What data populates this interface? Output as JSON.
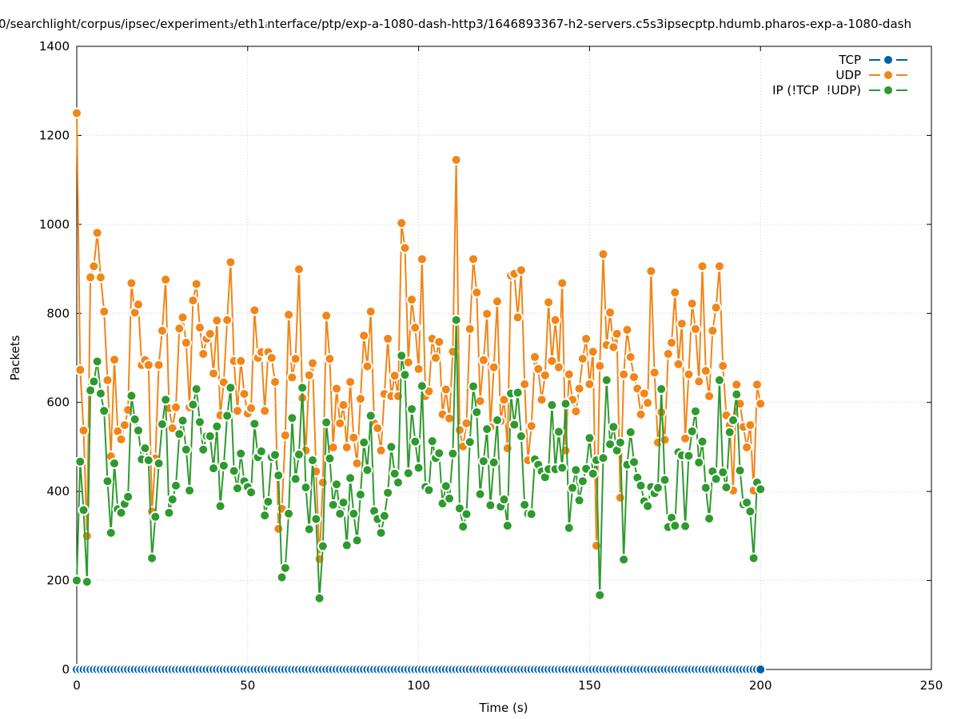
{
  "chart_data": {
    "type": "line",
    "title": "0/searchlight/corpus/ipsec/experiment₃/eth1ᵢnterface/ptp/exp-a-1080-dash-http3/1646893367-h2-servers.c5s3ipsecptp.hdumb.pharos-exp-a-1080-dash",
    "x_label": "Time (s)",
    "y_label": "Packets",
    "x": [
      0,
      1,
      2,
      3,
      4,
      5,
      6,
      7,
      8,
      9,
      10,
      11,
      12,
      13,
      14,
      15,
      16,
      17,
      18,
      19,
      20,
      21,
      22,
      23,
      24,
      25,
      26,
      27,
      28,
      29,
      30,
      31,
      32,
      33,
      34,
      35,
      36,
      37,
      38,
      39,
      40,
      41,
      42,
      43,
      44,
      45,
      46,
      47,
      48,
      49,
      50,
      51,
      52,
      53,
      54,
      55,
      56,
      57,
      58,
      59,
      60,
      61,
      62,
      63,
      64,
      65,
      66,
      67,
      68,
      69,
      70,
      71,
      72,
      73,
      74,
      75,
      76,
      77,
      78,
      79,
      80,
      81,
      82,
      83,
      84,
      85,
      86,
      87,
      88,
      89,
      90,
      91,
      92,
      93,
      94,
      95,
      96,
      97,
      98,
      99,
      100,
      101,
      102,
      103,
      104,
      105,
      106,
      107,
      108,
      109,
      110,
      111,
      112,
      113,
      114,
      115,
      116,
      117,
      118,
      119,
      120,
      121,
      122,
      123,
      124,
      125,
      126,
      127,
      128,
      129,
      130,
      131,
      132,
      133,
      134,
      135,
      136,
      137,
      138,
      139,
      140,
      141,
      142,
      143,
      144,
      145,
      146,
      147,
      148,
      149,
      150,
      151,
      152,
      153,
      154,
      155,
      156,
      157,
      158,
      159,
      160,
      161,
      162,
      163,
      164,
      165,
      166,
      167,
      168,
      169,
      170,
      171,
      172,
      173,
      174,
      175,
      176,
      177,
      178,
      179,
      180,
      181,
      182,
      183,
      184,
      185,
      186,
      187,
      188,
      189,
      190,
      191,
      192,
      193,
      194,
      195,
      196,
      197,
      198,
      199,
      200
    ],
    "series": [
      {
        "name": "TCP",
        "color": "#0060ad",
        "values": [
          0,
          0,
          0,
          0,
          0,
          0,
          0,
          0,
          0,
          0,
          0,
          0,
          0,
          0,
          0,
          0,
          0,
          0,
          0,
          0,
          0,
          0,
          0,
          0,
          0,
          0,
          0,
          0,
          0,
          0,
          0,
          0,
          0,
          0,
          0,
          0,
          0,
          0,
          0,
          0,
          0,
          0,
          0,
          0,
          0,
          0,
          0,
          0,
          0,
          0,
          0,
          0,
          0,
          0,
          0,
          0,
          0,
          0,
          0,
          0,
          0,
          0,
          0,
          0,
          0,
          0,
          0,
          0,
          0,
          0,
          0,
          0,
          0,
          0,
          0,
          0,
          0,
          0,
          0,
          0,
          0,
          0,
          0,
          0,
          0,
          0,
          0,
          0,
          0,
          0,
          0,
          0,
          0,
          0,
          0,
          0,
          0,
          0,
          0,
          0,
          0,
          0,
          0,
          0,
          0,
          0,
          0,
          0,
          0,
          0,
          0,
          0,
          0,
          0,
          0,
          0,
          0,
          0,
          0,
          0,
          0,
          0,
          0,
          0,
          0,
          0,
          0,
          0,
          0,
          0,
          0,
          0,
          0,
          0,
          0,
          0,
          0,
          0,
          0,
          0,
          0,
          0,
          0,
          0,
          0,
          0,
          0,
          0,
          0,
          0,
          0,
          0,
          0,
          0,
          0,
          0,
          0,
          0,
          0,
          0,
          0,
          0,
          0,
          0,
          0,
          0,
          0,
          0,
          0,
          0,
          0,
          0,
          0,
          0,
          0,
          0,
          0,
          0,
          0,
          0,
          0,
          0,
          0,
          0,
          0,
          0,
          0,
          0,
          0,
          0,
          0,
          0,
          0,
          0,
          0,
          0,
          0,
          0,
          0,
          0,
          0
        ]
      },
      {
        "name": "UDP",
        "color": "#f28518",
        "values": [
          1250,
          673,
          537,
          300,
          881,
          906,
          981,
          881,
          804,
          650,
          479,
          696,
          535,
          517,
          549,
          583,
          868,
          802,
          820,
          684,
          695,
          684,
          355,
          474,
          684,
          761,
          876,
          587,
          542,
          589,
          766,
          791,
          734,
          589,
          829,
          866,
          768,
          709,
          743,
          754,
          665,
          784,
          571,
          645,
          785,
          915,
          693,
          581,
          693,
          619,
          575,
          587,
          807,
          700,
          713,
          581,
          713,
          700,
          646,
          316,
          361,
          526,
          797,
          656,
          698,
          899,
          610,
          492,
          661,
          688,
          445,
          248,
          420,
          795,
          698,
          499,
          631,
          553,
          594,
          499,
          646,
          521,
          463,
          608,
          750,
          681,
          804,
          553,
          542,
          492,
          619,
          743,
          614,
          660,
          614,
          1003,
          947,
          690,
          831,
          768,
          675,
          922,
          614,
          625,
          743,
          700,
          736,
          573,
          629,
          564,
          714,
          1145,
          538,
          501,
          553,
          765,
          922,
          847,
          603,
          695,
          799,
          544,
          679,
          827,
          558,
          606,
          497,
          885,
          889,
          791,
          897,
          641,
          470,
          547,
          702,
          675,
          606,
          661,
          825,
          693,
          785,
          679,
          868,
          492,
          663,
          606,
          580,
          631,
          698,
          743,
          641,
          714,
          278,
          682,
          933,
          729,
          802,
          724,
          754,
          386,
          663,
          763,
          702,
          657,
          631,
          573,
          620,
          599,
          895,
          667,
          510,
          578,
          516,
          709,
          734,
          847,
          686,
          777,
          519,
          663,
          822,
          765,
          647,
          906,
          671,
          614,
          761,
          813,
          906,
          682,
          571,
          549,
          402,
          640,
          597,
          545,
          499,
          549,
          402,
          640,
          597
        ]
      },
      {
        "name": "IP (!TCP  !UDP)",
        "color": "#2e9a2e",
        "values": [
          200,
          467,
          358,
          197,
          627,
          647,
          692,
          620,
          581,
          423,
          307,
          463,
          360,
          352,
          372,
          388,
          615,
          562,
          537,
          472,
          497,
          470,
          250,
          343,
          463,
          551,
          606,
          352,
          382,
          413,
          529,
          559,
          494,
          402,
          595,
          630,
          556,
          494,
          524,
          524,
          452,
          546,
          367,
          458,
          570,
          633,
          446,
          407,
          485,
          423,
          410,
          398,
          552,
          477,
          490,
          346,
          377,
          477,
          482,
          436,
          207,
          228,
          350,
          565,
          428,
          483,
          633,
          409,
          315,
          470,
          338,
          160,
          277,
          555,
          474,
          370,
          416,
          350,
          375,
          279,
          430,
          350,
          290,
          393,
          510,
          448,
          570,
          356,
          338,
          307,
          345,
          397,
          500,
          440,
          420,
          705,
          662,
          441,
          585,
          512,
          453,
          637,
          410,
          403,
          513,
          475,
          486,
          373,
          412,
          384,
          485,
          785,
          362,
          321,
          349,
          511,
          636,
          578,
          394,
          468,
          540,
          369,
          465,
          560,
          366,
          382,
          323,
          620,
          550,
          622,
          524,
          370,
          350,
          349,
          472,
          460,
          445,
          432,
          450,
          594,
          450,
          534,
          453,
          597,
          318,
          408,
          448,
          380,
          423,
          451,
          520,
          440,
          470,
          167,
          475,
          650,
          506,
          545,
          492,
          510,
          247,
          460,
          533,
          466,
          431,
          413,
          378,
          367,
          410,
          396,
          408,
          630,
          426,
          320,
          341,
          323,
          488,
          481,
          322,
          480,
          535,
          580,
          465,
          512,
          408,
          339,
          445,
          428,
          650,
          443,
          409,
          533,
          560,
          618,
          447,
          371,
          375,
          355,
          250,
          420,
          405
        ]
      }
    ],
    "xlim": [
      0,
      250
    ],
    "xticks": [
      0,
      50,
      100,
      150,
      200,
      250
    ],
    "ylim": [
      0,
      1400
    ],
    "yticks": [
      0,
      200,
      400,
      600,
      800,
      1000,
      1200,
      1400
    ],
    "grid": true,
    "legend": "top-right"
  }
}
